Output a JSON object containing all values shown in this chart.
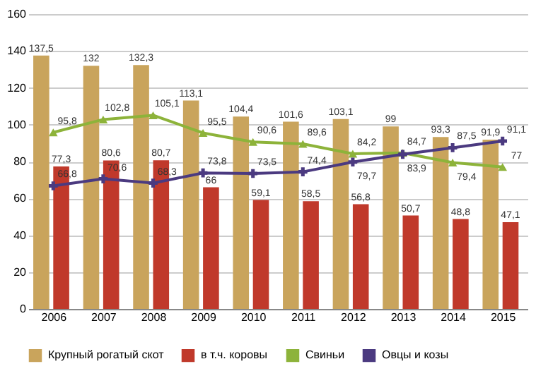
{
  "chart_data": {
    "type": "bar",
    "categories": [
      "2006",
      "2007",
      "2008",
      "2009",
      "2010",
      "2011",
      "2012",
      "2013",
      "2014",
      "2015"
    ],
    "series": [
      {
        "name": "Крупный рогатый скот",
        "type": "bar",
        "color": "#c9a45c",
        "values": [
          137.5,
          132,
          132.3,
          113.1,
          104.4,
          101.6,
          103.1,
          99,
          93.3,
          91.9
        ],
        "value_labels": [
          "137,5",
          "132",
          "132,3",
          "113,1",
          "104,4",
          "101,6",
          "103,1",
          "99",
          "93,3",
          "91,9"
        ]
      },
      {
        "name": "в т.ч. коровы",
        "type": "bar",
        "color": "#c0392b",
        "values": [
          77.3,
          80.6,
          80.7,
          66,
          59.1,
          58.5,
          56.8,
          50.7,
          48.8,
          47.1
        ],
        "value_labels": [
          "77,3",
          "80,6",
          "80,7",
          "66",
          "59,1",
          "58,5",
          "56,8",
          "50,7",
          "48,8",
          "47,1"
        ]
      },
      {
        "name": "Свиньи",
        "type": "line",
        "color": "#8db33a",
        "marker": "triangle",
        "values": [
          95.8,
          102.8,
          105.1,
          95.5,
          90.6,
          89.6,
          84.2,
          84.7,
          79.4,
          77
        ],
        "value_labels": [
          "95,8",
          "102,8",
          "105,1",
          "95,5",
          "90,6",
          "89,6",
          "84,2",
          "84,7",
          "79,4",
          "77"
        ]
      },
      {
        "name": "Овцы и козы",
        "type": "line",
        "color": "#4b3a80",
        "marker": "cross",
        "values": [
          66.8,
          70.6,
          68.3,
          73.8,
          73.5,
          74.4,
          79.7,
          83.9,
          87.5,
          91.1
        ],
        "value_labels": [
          "66,8",
          "70,6",
          "68,3",
          "73,8",
          "73,5",
          "74,4",
          "79,7",
          "83,9",
          "87,5",
          "91,1"
        ]
      }
    ],
    "ylim": [
      0,
      160
    ],
    "yticks": [
      0,
      20,
      40,
      60,
      80,
      100,
      120,
      140,
      160
    ],
    "grid": "y",
    "legend": "bottom"
  }
}
